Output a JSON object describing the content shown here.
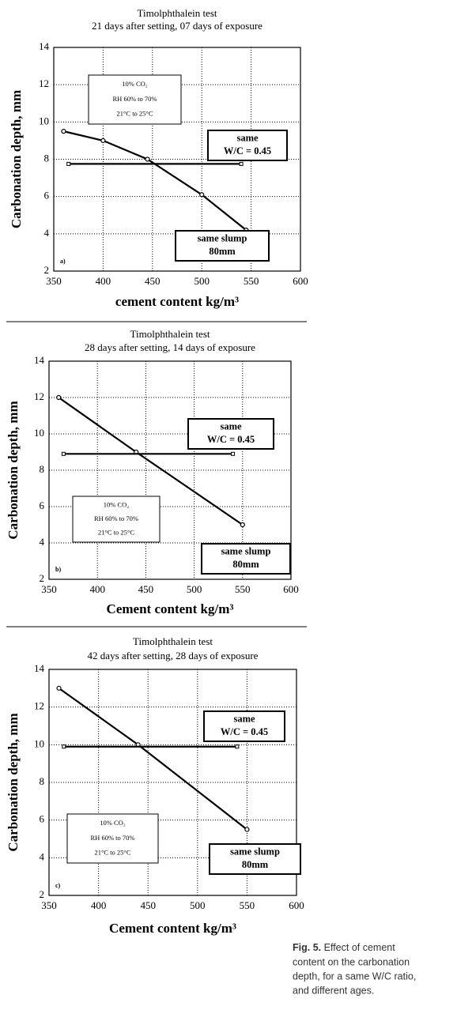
{
  "chart_data": [
    {
      "type": "line",
      "title": "Timolphthalein test",
      "subtitle": "21 days after setting, 07 days of exposure",
      "x_label": "cement content kg/m³",
      "y_label": "Carbonation depth, mm",
      "xlim": [
        350,
        600
      ],
      "xticks": [
        350,
        400,
        450,
        500,
        550,
        600
      ],
      "ylim": [
        2,
        14
      ],
      "yticks": [
        2,
        4,
        6,
        8,
        10,
        12,
        14
      ],
      "grid": true,
      "series": [
        {
          "color": "#000000",
          "x": [
            360,
            400,
            445,
            500,
            545
          ],
          "values": [
            9.5,
            9.0,
            8.0,
            6.1,
            4.2
          ]
        },
        {
          "color": "#000000",
          "x": [
            365,
            540
          ],
          "values": [
            7.75,
            7.75
          ]
        }
      ],
      "conditions": [
        "10% CO₂",
        "RH 60% to 70%",
        "21°C to 25°C"
      ],
      "wc_note": [
        "same",
        "W/C = 0.45"
      ],
      "slump_note": [
        "same slump",
        "80mm"
      ],
      "panel_label": "a)"
    },
    {
      "type": "line",
      "title": "Timolphthalein test",
      "subtitle": "28 days after setting, 14 days of exposure",
      "x_label": "Cement content kg/m³",
      "y_label": "Carbonation depth, mm",
      "xlim": [
        350,
        600
      ],
      "xticks": [
        350,
        400,
        450,
        500,
        550,
        600
      ],
      "ylim": [
        2,
        14
      ],
      "yticks": [
        2,
        4,
        6,
        8,
        10,
        12,
        14
      ],
      "grid": true,
      "series": [
        {
          "color": "#000000",
          "x": [
            360,
            440,
            550
          ],
          "values": [
            12,
            9,
            5
          ]
        },
        {
          "color": "#000000",
          "x": [
            365,
            540
          ],
          "values": [
            8.9,
            8.9
          ]
        }
      ],
      "conditions": [
        "10% CO₂",
        "RH 60% to 70%",
        "21°C to 25°C"
      ],
      "wc_note": [
        "same",
        "W/C = 0.45"
      ],
      "slump_note": [
        "same slump",
        "80mm"
      ],
      "panel_label": "b)"
    },
    {
      "type": "line",
      "title": "Timolphthalein test",
      "subtitle": "42 days after setting, 28 days of exposure",
      "x_label": "Cement content kg/m³",
      "y_label": "Carbonation depth, mm",
      "xlim": [
        350,
        600
      ],
      "xticks": [
        350,
        400,
        450,
        500,
        550,
        600
      ],
      "ylim": [
        2,
        14
      ],
      "yticks": [
        2,
        4,
        6,
        8,
        10,
        12,
        14
      ],
      "grid": true,
      "series": [
        {
          "color": "#000000",
          "x": [
            360,
            440,
            550
          ],
          "values": [
            13,
            10,
            5.5
          ]
        },
        {
          "color": "#000000",
          "x": [
            365,
            540
          ],
          "values": [
            9.9,
            9.9
          ]
        }
      ],
      "conditions": [
        "10% CO₂",
        "RH 60% to 70%",
        "21°C to 25°C"
      ],
      "wc_note": [
        "same",
        "W/C = 0.45"
      ],
      "slump_note": [
        "same slump",
        "80mm"
      ],
      "panel_label": "c)"
    }
  ],
  "caption_label": "Fig. 5.",
  "caption_lines": [
    "Effect of cement",
    "content on the carbonation",
    "depth, for a same W/C ratio,",
    "and different ages."
  ]
}
